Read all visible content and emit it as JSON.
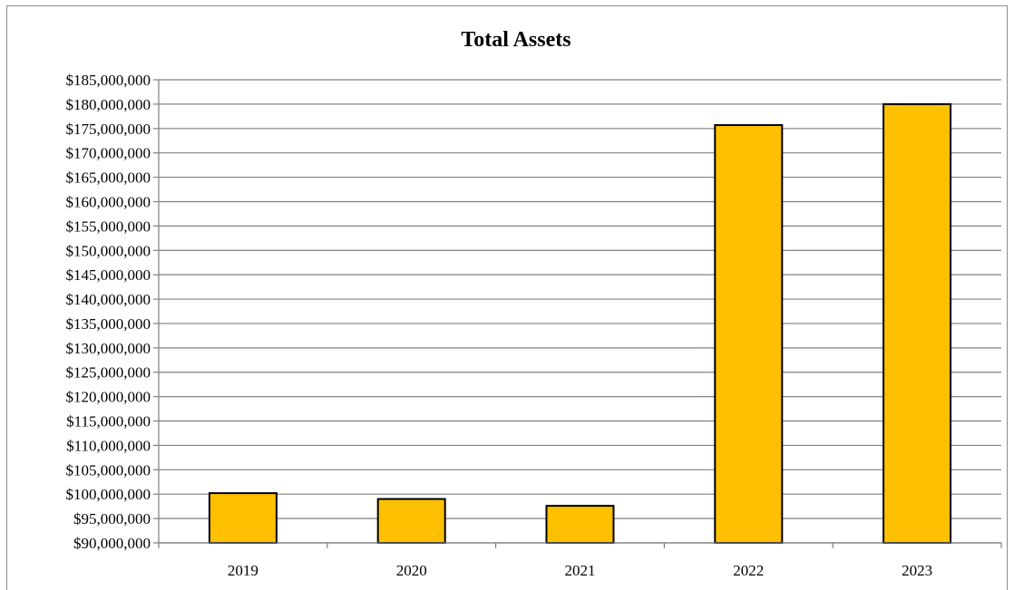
{
  "chart_data": {
    "type": "bar",
    "title": "Total Assets",
    "xlabel": "",
    "ylabel": "",
    "categories": [
      "2019",
      "2020",
      "2021",
      "2022",
      "2023"
    ],
    "values": [
      100200000,
      99000000,
      97600000,
      175700000,
      180000000
    ],
    "ylim": [
      90000000,
      185000000
    ],
    "ytick_step": 5000000,
    "ytick_labels": [
      "$90,000,000",
      "$95,000,000",
      "$100,000,000",
      "$105,000,000",
      "$110,000,000",
      "$115,000,000",
      "$120,000,000",
      "$125,000,000",
      "$130,000,000",
      "$135,000,000",
      "$140,000,000",
      "$145,000,000",
      "$150,000,000",
      "$155,000,000",
      "$160,000,000",
      "$165,000,000",
      "$170,000,000",
      "$175,000,000",
      "$180,000,000",
      "$185,000,000"
    ],
    "grid": true,
    "legend": "none",
    "colors": {
      "bar_fill": "#ffc000",
      "bar_stroke": "#000000",
      "grid": "#808080",
      "axis": "#808080"
    }
  }
}
